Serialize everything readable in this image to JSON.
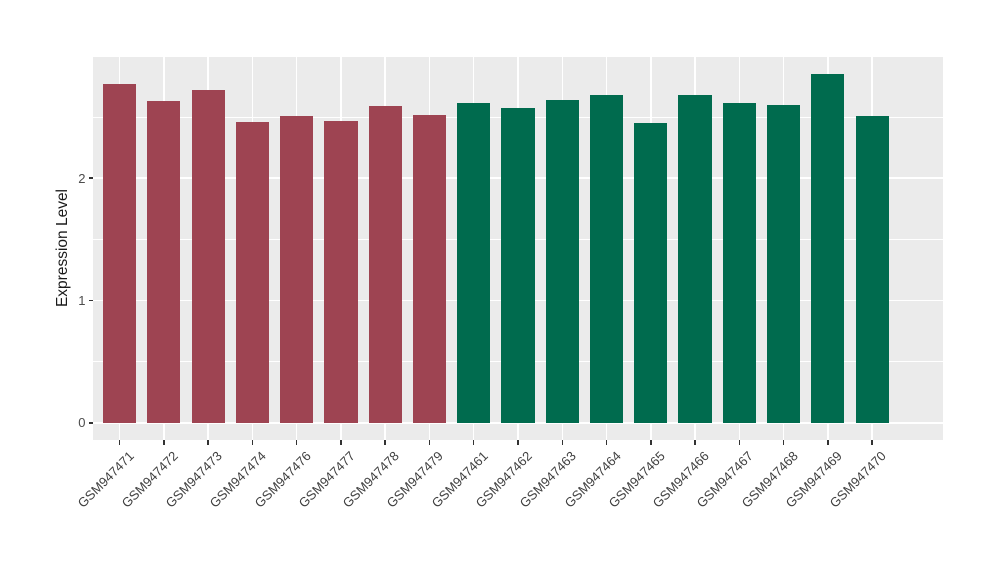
{
  "chart_data": {
    "type": "bar",
    "title": "",
    "xlabel": "",
    "ylabel": "Expression Level",
    "ylim": [
      -0.14,
      2.99
    ],
    "yticks": [
      0,
      1,
      2
    ],
    "ytick_labels": [
      "0",
      "1",
      "2"
    ],
    "minor_yticks": [
      0.5,
      1.5,
      2.5
    ],
    "grid": "on",
    "legend": "none",
    "panel_bg": "#EBEBEB",
    "grid_color": "#FFFFFF",
    "tick_color": "#333333",
    "categories": [
      "GSM947471",
      "GSM947472",
      "GSM947473",
      "GSM947474",
      "GSM947476",
      "GSM947477",
      "GSM947478",
      "GSM947479",
      "GSM947461",
      "GSM947462",
      "GSM947463",
      "GSM947464",
      "GSM947465",
      "GSM947466",
      "GSM947467",
      "GSM947468",
      "GSM947469",
      "GSM947470"
    ],
    "values": [
      2.77,
      2.63,
      2.72,
      2.46,
      2.51,
      2.47,
      2.59,
      2.52,
      2.61,
      2.57,
      2.64,
      2.68,
      2.45,
      2.68,
      2.61,
      2.6,
      2.85,
      2.51
    ],
    "bar_colors": [
      "#9E4452",
      "#9E4452",
      "#9E4452",
      "#9E4452",
      "#9E4452",
      "#9E4452",
      "#9E4452",
      "#9E4452",
      "#006B4E",
      "#006B4E",
      "#006B4E",
      "#006B4E",
      "#006B4E",
      "#006B4E",
      "#006B4E",
      "#006B4E",
      "#006B4E",
      "#006B4E"
    ],
    "group_colors": {
      "red_group": "#9E4452",
      "green_group": "#006B4E"
    }
  }
}
